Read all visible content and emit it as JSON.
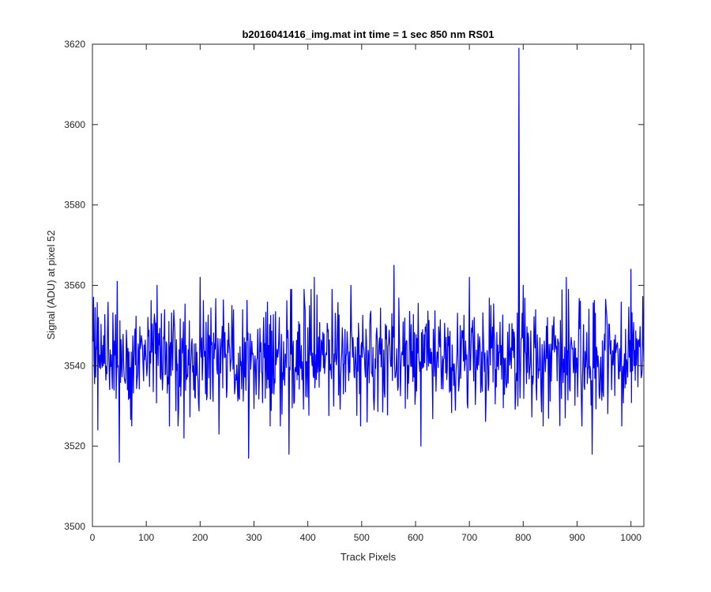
{
  "chart_data": {
    "type": "line",
    "title": "b2016041416_img.mat int time = 1 sec  850 nm RS01",
    "xlabel": "Track Pixels",
    "ylabel": "Signal (ADU) at pixel 52",
    "xlim": [
      0,
      1024
    ],
    "ylim": [
      3500,
      3620
    ],
    "xticks": [
      "0",
      "100",
      "200",
      "300",
      "400",
      "500",
      "600",
      "700",
      "800",
      "900",
      "1000"
    ],
    "yticks": [
      "3500",
      "3520",
      "3540",
      "3560",
      "3580",
      "3600",
      "3620"
    ],
    "grid": false,
    "legend": "none",
    "series": [
      {
        "color": "#0000ff",
        "x_start": 1,
        "x_step": 1,
        "baseline_mean": 3542,
        "baseline_std": 7,
        "values_sampled": {
          "x": [
            1,
            10,
            46,
            50,
            120,
            170,
            200,
            235,
            290,
            365,
            412,
            480,
            560,
            610,
            700,
            790,
            792,
            794,
            800,
            880,
            928,
            1000,
            1024
          ],
          "y": [
            3546,
            3524,
            3561,
            3516,
            3560,
            3522,
            3562,
            3523,
            3517,
            3518,
            3562,
            3560,
            3565,
            3520,
            3562,
            3530,
            3619,
            3532,
            3560,
            3562,
            3518,
            3564,
            3541
          ]
        }
      }
    ]
  }
}
